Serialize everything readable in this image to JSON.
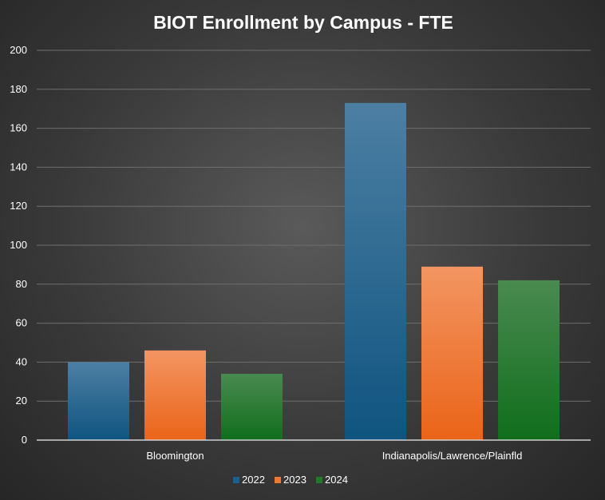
{
  "chart_data": {
    "type": "bar",
    "title": "BIOT Enrollment by Campus - FTE",
    "xlabel": "",
    "ylabel": "",
    "categories": [
      "Bloomington",
      "Indianapolis/Lawrence/Plainfld"
    ],
    "series": [
      {
        "name": "2022",
        "values": [
          40,
          173
        ],
        "color": "#1c5f8e"
      },
      {
        "name": "2023",
        "values": [
          46,
          89
        ],
        "color": "#f07830"
      },
      {
        "name": "2024",
        "values": [
          34,
          82
        ],
        "color": "#1f7a2a"
      }
    ],
    "ylim": [
      0,
      200
    ],
    "yticks": [
      0,
      20,
      40,
      60,
      80,
      100,
      120,
      140,
      160,
      180,
      200
    ],
    "grid": true,
    "legend": "bottom"
  }
}
